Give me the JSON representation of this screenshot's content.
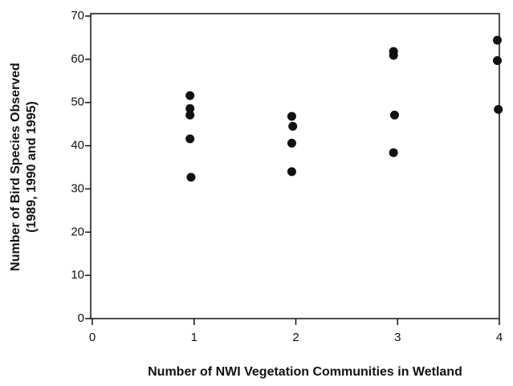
{
  "chart_data": {
    "type": "scatter",
    "x_label": "Number of NWI Vegetation Communities in Wetland",
    "y_label": "Number of Bird Species Observed",
    "y_label_2": "(1989, 1990 and 1995)",
    "x": [
      0.96,
      0.96,
      0.96,
      0.96,
      0.97,
      1.96,
      1.97,
      1.96,
      1.96,
      2.96,
      2.96,
      2.97,
      2.96,
      3.98,
      3.98,
      3.99
    ],
    "values": [
      51.6,
      48.6,
      47.1,
      41.6,
      32.7,
      46.8,
      44.5,
      40.6,
      34,
      61.8,
      60.9,
      47.1,
      38.4,
      64.4,
      59.7,
      48.4
    ],
    "color": "#111111",
    "xlim": [
      0,
      4
    ],
    "xticks": [
      0,
      1,
      2,
      3,
      4
    ],
    "ylim": [
      0,
      70
    ],
    "yticks": [
      0,
      10,
      20,
      30,
      40,
      50,
      60,
      70
    ]
  }
}
